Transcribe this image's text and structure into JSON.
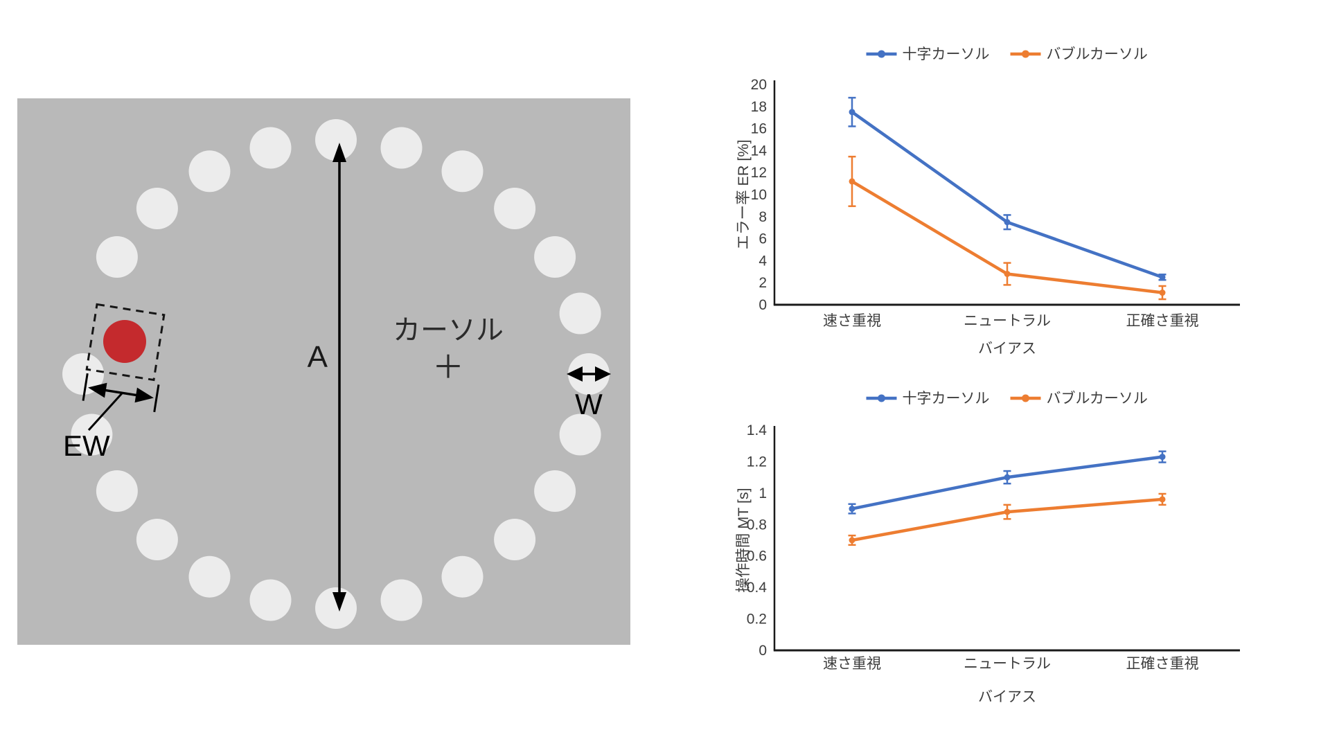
{
  "diagram": {
    "labels": {
      "amplitude": "A",
      "target_width": "W",
      "effective_width": "EW",
      "cursor_line1": "カーソル",
      "cursor_line2": "＋"
    },
    "colors": {
      "panel": "#b9b9b9",
      "circle": "#ececec",
      "target": "#c42a2d",
      "ink": "#000000"
    },
    "ring": {
      "circle_count": 24,
      "target_slot": 19,
      "circle_radius": 30,
      "target_radius": 31
    }
  },
  "chart_data": [
    {
      "type": "line",
      "title": "",
      "categories": [
        "速さ重視",
        "ニュートラル",
        "正確さ重視"
      ],
      "series": [
        {
          "name": "十字カーソル",
          "color": "#4472c4",
          "values": [
            17.5,
            7.5,
            2.5
          ],
          "errors": [
            1.3,
            0.65,
            0.25
          ]
        },
        {
          "name": "バブルカーソル",
          "color": "#ed7d31",
          "values": [
            11.2,
            2.8,
            1.1
          ],
          "errors": [
            2.25,
            1.0,
            0.6
          ]
        }
      ],
      "xlabel": "バイアス",
      "ylabel": "エラー率 ER [%]",
      "ylim": [
        0,
        20
      ],
      "ytick_step": 2,
      "grid": false,
      "legend_position": "top"
    },
    {
      "type": "line",
      "title": "",
      "categories": [
        "速さ重視",
        "ニュートラル",
        "正確さ重視"
      ],
      "series": [
        {
          "name": "十字カーソル",
          "color": "#4472c4",
          "values": [
            0.9,
            1.1,
            1.23
          ],
          "errors": [
            0.03,
            0.04,
            0.035
          ]
        },
        {
          "name": "バブルカーソル",
          "color": "#ed7d31",
          "values": [
            0.7,
            0.88,
            0.96
          ],
          "errors": [
            0.03,
            0.045,
            0.035
          ]
        }
      ],
      "xlabel": "バイアス",
      "ylabel": "操作時間 MT [s]",
      "ylim": [
        0,
        1.4
      ],
      "ytick_step": 0.2,
      "grid": false,
      "legend_position": "top"
    }
  ],
  "text_color": "#3d3d3d"
}
